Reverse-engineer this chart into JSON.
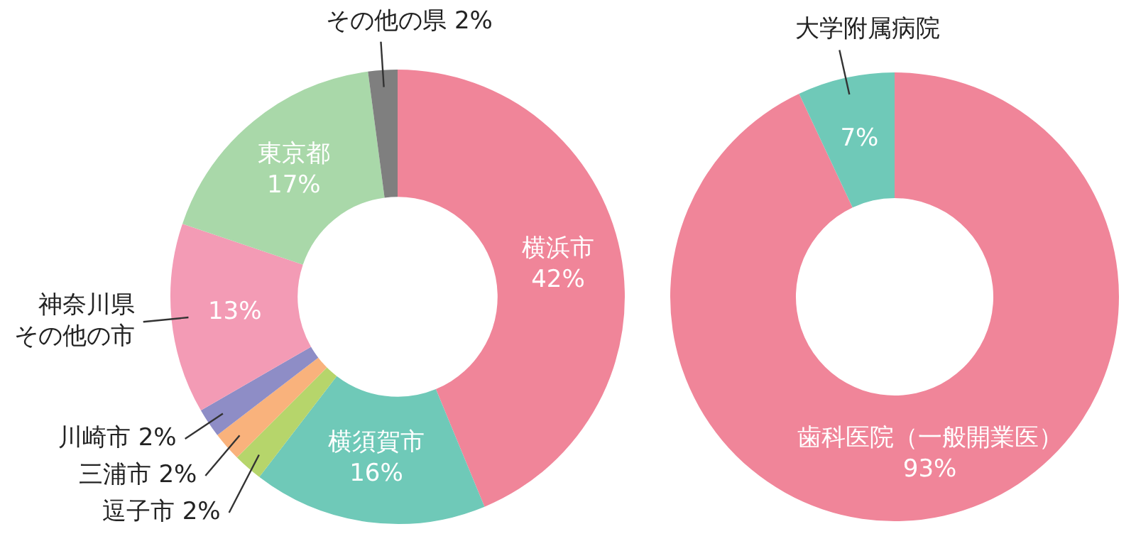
{
  "chart_data": [
    {
      "type": "donut",
      "categories": [
        "横浜市",
        "横須賀市",
        "逗子市",
        "三浦市",
        "川崎市",
        "神奈川県その他の市",
        "東京都",
        "その他の県"
      ],
      "values": [
        42,
        16,
        2,
        2,
        2,
        13,
        17,
        2
      ],
      "value_labels": [
        "42%",
        "16%",
        "2%",
        "2%",
        "2%",
        "13%",
        "17%",
        "2%"
      ],
      "colors": [
        "#f08599",
        "#6fc9b8",
        "#b6d56b",
        "#f9b27c",
        "#8e8dc6",
        "#f39bb5",
        "#a9d8a9",
        "#7f7f7f"
      ]
    },
    {
      "type": "donut",
      "categories": [
        "歯科医院（一般開業医）",
        "大学附属病院"
      ],
      "values": [
        93,
        7
      ],
      "value_labels": [
        "93%",
        "7%"
      ],
      "colors": [
        "#f08599",
        "#6fc9b8"
      ]
    }
  ]
}
